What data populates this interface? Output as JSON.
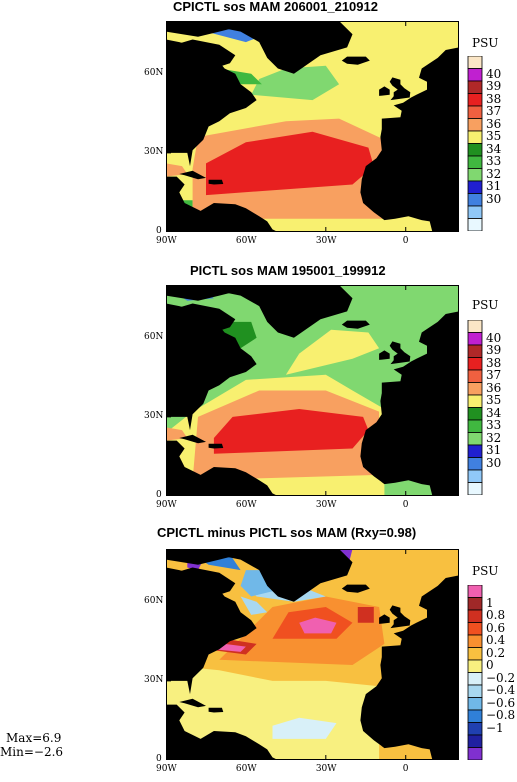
{
  "chart_data": [
    {
      "type": "heatmap",
      "title": "CPICTL sos MAM 206001_210912",
      "unit": "PSU",
      "x_ticks": [
        "90W",
        "60W",
        "30W",
        "0"
      ],
      "y_ticks": [
        "0",
        "30N",
        "60N"
      ],
      "legend_levels": [
        "40",
        "39",
        "38",
        "37",
        "36",
        "35",
        "34",
        "33",
        "32",
        "31",
        "30"
      ],
      "legend_colors": [
        "#fbe6c6",
        "#c020d0",
        "#b02828",
        "#e82020",
        "#f06040",
        "#f8a060",
        "#f8f070",
        "#209020",
        "#40b840",
        "#80d870",
        "#2020d0",
        "#4080e0",
        "#90c8f8",
        "#e8f8ff"
      ],
      "land_color": "#000000"
    },
    {
      "type": "heatmap",
      "title": "PICTL sos MAM 195001_199912",
      "unit": "PSU",
      "x_ticks": [
        "90W",
        "60W",
        "30W",
        "0"
      ],
      "y_ticks": [
        "0",
        "30N",
        "60N"
      ],
      "legend_levels": [
        "40",
        "39",
        "38",
        "37",
        "36",
        "35",
        "34",
        "33",
        "32",
        "31",
        "30"
      ],
      "legend_colors": [
        "#fbe6c6",
        "#c020d0",
        "#b02828",
        "#e82020",
        "#f06040",
        "#f8a060",
        "#f8f070",
        "#209020",
        "#40b840",
        "#80d870",
        "#2020d0",
        "#4080e0",
        "#90c8f8",
        "#e8f8ff"
      ],
      "land_color": "#000000"
    },
    {
      "type": "heatmap",
      "title": "CPICTL minus PICTL sos MAM (Rxy=0.98)",
      "unit": "PSU",
      "x_ticks": [
        "90W",
        "60W",
        "30W",
        "0"
      ],
      "y_ticks": [
        "0",
        "30N",
        "60N"
      ],
      "legend_levels": [
        "1",
        "0.8",
        "0.6",
        "0.4",
        "0.2",
        "0",
        "−0.2",
        "−0.4",
        "−0.6",
        "−0.8",
        "−1"
      ],
      "legend_colors": [
        "#f060b0",
        "#a02828",
        "#d03020",
        "#f05020",
        "#f89030",
        "#f8c040",
        "#f8f080",
        "#d8f0f8",
        "#a8d8f0",
        "#70b8e8",
        "#3080d8",
        "#2040b0",
        "#2020a0",
        "#8030d0"
      ],
      "land_color": "#000000",
      "stats": {
        "max": "Max=6.9",
        "min": "Min=−2.6"
      }
    }
  ]
}
